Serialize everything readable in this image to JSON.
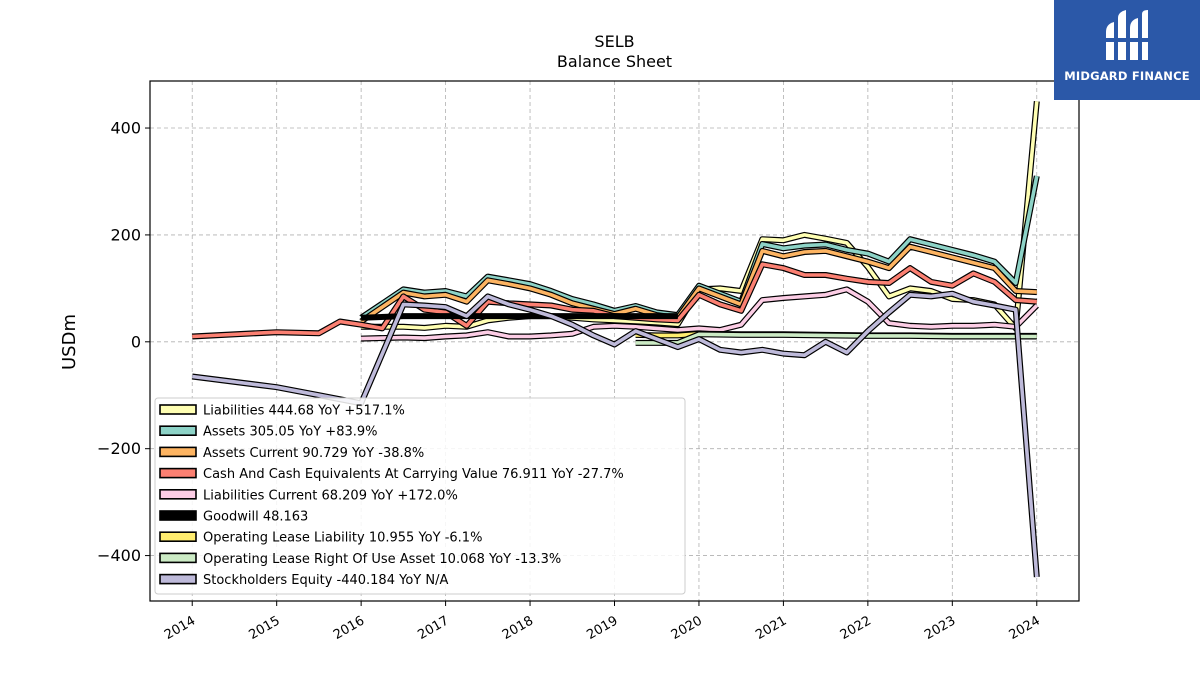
{
  "brand": {
    "name": "MIDGARD FINANCE"
  },
  "chart_data": {
    "type": "line",
    "title": "SELB",
    "subtitle": "Balance  Sheet",
    "ylabel": "USDm",
    "xlim": [
      2013.5,
      2024.5
    ],
    "ylim": [
      -485,
      488
    ],
    "yticks": [
      400,
      200,
      0,
      -200,
      -400
    ],
    "ytick_labels": [
      "400",
      "200",
      "0",
      "−200",
      "−400"
    ],
    "xticks": [
      2014,
      2015,
      2016,
      2017,
      2018,
      2019,
      2020,
      2021,
      2022,
      2023,
      2024
    ],
    "xtick_labels": [
      "2014",
      "2015",
      "2016",
      "2017",
      "2018",
      "2019",
      "2020",
      "2021",
      "2022",
      "2023",
      "2024"
    ],
    "grid": true,
    "legend_position": "lower-left",
    "series": [
      {
        "name": "Liabilities",
        "legend_label": "Liabilities  444.68 YoY +517.1%",
        "color": "#ffffb3",
        "points": [
          [
            2016.0,
            28
          ],
          [
            2016.5,
            28
          ],
          [
            2016.75,
            26
          ],
          [
            2017.0,
            30
          ],
          [
            2017.25,
            28
          ],
          [
            2017.5,
            40
          ],
          [
            2017.75,
            45
          ],
          [
            2018.0,
            48
          ],
          [
            2018.25,
            48
          ],
          [
            2018.5,
            45
          ],
          [
            2018.75,
            42
          ],
          [
            2019.0,
            40
          ],
          [
            2019.25,
            38
          ],
          [
            2019.5,
            36
          ],
          [
            2019.75,
            33
          ],
          [
            2020.0,
            98
          ],
          [
            2020.25,
            100
          ],
          [
            2020.5,
            95
          ],
          [
            2020.75,
            192
          ],
          [
            2021.0,
            190
          ],
          [
            2021.25,
            200
          ],
          [
            2021.5,
            193
          ],
          [
            2021.75,
            185
          ],
          [
            2022.0,
            140
          ],
          [
            2022.25,
            85
          ],
          [
            2022.5,
            100
          ],
          [
            2022.75,
            95
          ],
          [
            2023.0,
            80
          ],
          [
            2023.25,
            78
          ],
          [
            2023.5,
            70
          ],
          [
            2023.75,
            25
          ],
          [
            2024.0,
            450
          ]
        ]
      },
      {
        "name": "Assets",
        "legend_label": "Assets  305.05 YoY +83.9%",
        "color": "#8dd3c7",
        "points": [
          [
            2016.0,
            45
          ],
          [
            2016.5,
            98
          ],
          [
            2016.75,
            92
          ],
          [
            2017.0,
            95
          ],
          [
            2017.25,
            85
          ],
          [
            2017.5,
            122
          ],
          [
            2017.75,
            115
          ],
          [
            2018.0,
            108
          ],
          [
            2018.25,
            95
          ],
          [
            2018.5,
            80
          ],
          [
            2018.75,
            70
          ],
          [
            2019.0,
            58
          ],
          [
            2019.25,
            67
          ],
          [
            2019.5,
            55
          ],
          [
            2019.75,
            50
          ],
          [
            2020.0,
            105
          ],
          [
            2020.25,
            90
          ],
          [
            2020.5,
            75
          ],
          [
            2020.75,
            183
          ],
          [
            2021.0,
            175
          ],
          [
            2021.25,
            180
          ],
          [
            2021.5,
            182
          ],
          [
            2021.75,
            172
          ],
          [
            2022.0,
            165
          ],
          [
            2022.25,
            150
          ],
          [
            2022.5,
            192
          ],
          [
            2022.75,
            182
          ],
          [
            2023.0,
            172
          ],
          [
            2023.25,
            162
          ],
          [
            2023.5,
            150
          ],
          [
            2023.75,
            110
          ],
          [
            2024.0,
            310
          ]
        ]
      },
      {
        "name": "Assets Current",
        "legend_label": "Assets Current  90.729 YoY -38.8%",
        "color": "#fdb462",
        "points": [
          [
            2016.0,
            38
          ],
          [
            2016.5,
            92
          ],
          [
            2016.75,
            85
          ],
          [
            2017.0,
            88
          ],
          [
            2017.25,
            75
          ],
          [
            2017.5,
            115
          ],
          [
            2017.75,
            108
          ],
          [
            2018.0,
            100
          ],
          [
            2018.25,
            88
          ],
          [
            2018.5,
            72
          ],
          [
            2018.75,
            62
          ],
          [
            2019.0,
            52
          ],
          [
            2019.25,
            62
          ],
          [
            2019.5,
            50
          ],
          [
            2019.75,
            45
          ],
          [
            2020.0,
            100
          ],
          [
            2020.25,
            85
          ],
          [
            2020.5,
            70
          ],
          [
            2020.75,
            170
          ],
          [
            2021.0,
            160
          ],
          [
            2021.25,
            168
          ],
          [
            2021.5,
            170
          ],
          [
            2021.75,
            160
          ],
          [
            2022.0,
            150
          ],
          [
            2022.25,
            138
          ],
          [
            2022.5,
            178
          ],
          [
            2022.75,
            168
          ],
          [
            2023.0,
            158
          ],
          [
            2023.25,
            148
          ],
          [
            2023.5,
            138
          ],
          [
            2023.75,
            95
          ],
          [
            2024.0,
            93
          ]
        ]
      },
      {
        "name": "Cash And Cash Equivalents At Carrying Value",
        "legend_label": "Cash And Cash Equivalents At Carrying Value  76.911 YoY -27.7%",
        "color": "#fb8072",
        "points": [
          [
            2014.0,
            10
          ],
          [
            2015.0,
            18
          ],
          [
            2015.5,
            16
          ],
          [
            2015.75,
            38
          ],
          [
            2016.0,
            32
          ],
          [
            2016.25,
            25
          ],
          [
            2016.5,
            85
          ],
          [
            2016.75,
            60
          ],
          [
            2017.0,
            55
          ],
          [
            2017.25,
            30
          ],
          [
            2017.5,
            75
          ],
          [
            2017.75,
            72
          ],
          [
            2018.0,
            70
          ],
          [
            2018.25,
            68
          ],
          [
            2018.5,
            60
          ],
          [
            2018.75,
            58
          ],
          [
            2019.0,
            48
          ],
          [
            2019.25,
            45
          ],
          [
            2019.5,
            42
          ],
          [
            2019.75,
            40
          ],
          [
            2020.0,
            88
          ],
          [
            2020.25,
            70
          ],
          [
            2020.5,
            58
          ],
          [
            2020.75,
            145
          ],
          [
            2021.0,
            138
          ],
          [
            2021.25,
            125
          ],
          [
            2021.5,
            125
          ],
          [
            2021.75,
            118
          ],
          [
            2022.0,
            112
          ],
          [
            2022.25,
            110
          ],
          [
            2022.5,
            138
          ],
          [
            2022.75,
            112
          ],
          [
            2023.0,
            105
          ],
          [
            2023.25,
            128
          ],
          [
            2023.5,
            112
          ],
          [
            2023.75,
            78
          ],
          [
            2024.0,
            75
          ]
        ]
      },
      {
        "name": "Liabilities Current",
        "legend_label": "Liabilities Current  68.209 YoY +172.0%",
        "color": "#fccde5",
        "points": [
          [
            2016.0,
            6
          ],
          [
            2016.5,
            8
          ],
          [
            2016.75,
            7
          ],
          [
            2017.0,
            10
          ],
          [
            2017.25,
            12
          ],
          [
            2017.5,
            18
          ],
          [
            2017.75,
            10
          ],
          [
            2018.0,
            10
          ],
          [
            2018.25,
            12
          ],
          [
            2018.5,
            15
          ],
          [
            2018.75,
            28
          ],
          [
            2019.0,
            30
          ],
          [
            2019.25,
            28
          ],
          [
            2019.5,
            25
          ],
          [
            2019.75,
            22
          ],
          [
            2020.0,
            25
          ],
          [
            2020.25,
            22
          ],
          [
            2020.5,
            32
          ],
          [
            2020.75,
            78
          ],
          [
            2021.0,
            82
          ],
          [
            2021.25,
            85
          ],
          [
            2021.5,
            88
          ],
          [
            2021.75,
            98
          ],
          [
            2022.0,
            75
          ],
          [
            2022.25,
            35
          ],
          [
            2022.5,
            30
          ],
          [
            2022.75,
            28
          ],
          [
            2023.0,
            30
          ],
          [
            2023.25,
            30
          ],
          [
            2023.5,
            32
          ],
          [
            2023.75,
            28
          ],
          [
            2024.0,
            68
          ]
        ]
      },
      {
        "name": "Goodwill",
        "legend_label": "Goodwill  48.163",
        "color": "#000000",
        "points": [
          [
            2016.0,
            45
          ],
          [
            2016.5,
            48
          ],
          [
            2016.75,
            48
          ],
          [
            2017.0,
            48
          ],
          [
            2017.25,
            48
          ],
          [
            2017.5,
            48
          ],
          [
            2017.75,
            48
          ],
          [
            2018.0,
            48
          ],
          [
            2018.25,
            48
          ],
          [
            2018.5,
            48
          ],
          [
            2018.75,
            48
          ],
          [
            2019.0,
            48
          ],
          [
            2019.25,
            48
          ],
          [
            2019.5,
            48
          ],
          [
            2019.75,
            48
          ]
        ]
      },
      {
        "name": "Operating Lease Liability",
        "legend_label": "Operating Lease Liability  10.955 YoY -6.1%",
        "color": "#ffed6f",
        "points": [
          [
            2019.25,
            13
          ],
          [
            2019.5,
            12
          ],
          [
            2019.75,
            12
          ],
          [
            2020.0,
            15
          ],
          [
            2020.5,
            14
          ],
          [
            2021.0,
            14
          ],
          [
            2021.5,
            13
          ],
          [
            2022.0,
            12
          ],
          [
            2022.5,
            12
          ],
          [
            2023.0,
            11
          ],
          [
            2023.5,
            11
          ],
          [
            2024.0,
            11
          ]
        ]
      },
      {
        "name": "Operating Lease Right Of Use Asset",
        "legend_label": "Operating Lease Right Of Use Asset  10.068 YoY -13.3%",
        "color": "#ccebc5",
        "points": [
          [
            2019.25,
            -2
          ],
          [
            2019.5,
            -2
          ],
          [
            2019.75,
            -2
          ],
          [
            2020.0,
            14
          ],
          [
            2020.5,
            13
          ],
          [
            2021.0,
            13
          ],
          [
            2021.5,
            12
          ],
          [
            2022.0,
            11
          ],
          [
            2022.5,
            11
          ],
          [
            2023.0,
            10
          ],
          [
            2023.5,
            10
          ],
          [
            2024.0,
            10
          ]
        ]
      },
      {
        "name": "Stockholders Equity",
        "legend_label": "Stockholders Equity  -440.184 YoY N/A",
        "color": "#bebada",
        "points": [
          [
            2014.0,
            -65
          ],
          [
            2015.0,
            -85
          ],
          [
            2015.5,
            -100
          ],
          [
            2016.0,
            -115
          ],
          [
            2016.5,
            70
          ],
          [
            2016.75,
            68
          ],
          [
            2017.0,
            65
          ],
          [
            2017.25,
            48
          ],
          [
            2017.5,
            85
          ],
          [
            2017.75,
            70
          ],
          [
            2018.0,
            60
          ],
          [
            2018.25,
            48
          ],
          [
            2018.5,
            32
          ],
          [
            2018.75,
            12
          ],
          [
            2019.0,
            -5
          ],
          [
            2019.25,
            20
          ],
          [
            2019.5,
            5
          ],
          [
            2019.75,
            -10
          ],
          [
            2020.0,
            5
          ],
          [
            2020.25,
            -15
          ],
          [
            2020.5,
            -20
          ],
          [
            2020.75,
            -15
          ],
          [
            2021.0,
            -22
          ],
          [
            2021.25,
            -25
          ],
          [
            2021.5,
            0
          ],
          [
            2021.75,
            -20
          ],
          [
            2022.0,
            20
          ],
          [
            2022.25,
            55
          ],
          [
            2022.5,
            88
          ],
          [
            2022.75,
            85
          ],
          [
            2023.0,
            90
          ],
          [
            2023.25,
            75
          ],
          [
            2023.5,
            68
          ],
          [
            2023.75,
            60
          ],
          [
            2024.0,
            -440
          ]
        ]
      }
    ]
  }
}
